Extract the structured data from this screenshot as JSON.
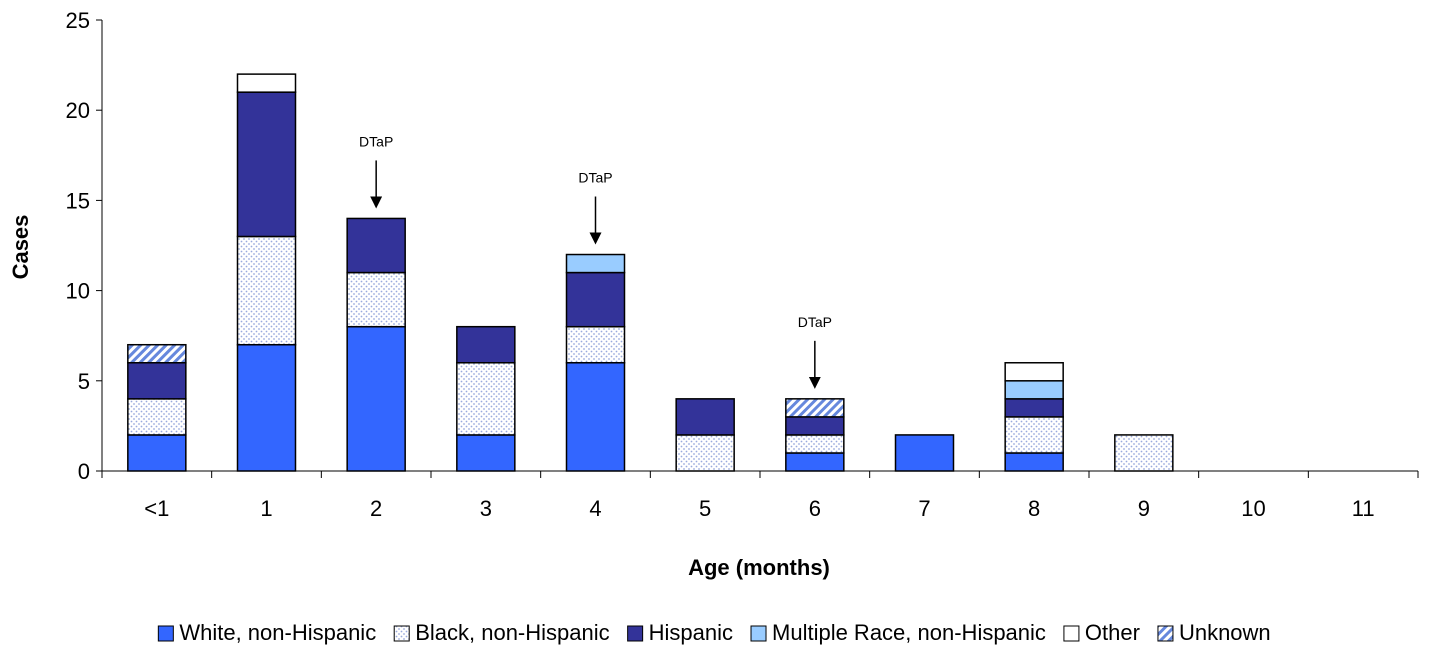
{
  "chart_data": {
    "type": "bar",
    "stacked": true,
    "categories": [
      "<1",
      "1",
      "2",
      "3",
      "4",
      "5",
      "6",
      "7",
      "8",
      "9",
      "10",
      "11"
    ],
    "series": [
      {
        "name": "White, non-Hispanic",
        "values": [
          2,
          7,
          8,
          2,
          6,
          0,
          1,
          2,
          1,
          0,
          0,
          0
        ],
        "color": "#3366ff",
        "pattern": "solid"
      },
      {
        "name": "Black, non-Hispanic",
        "values": [
          2,
          6,
          3,
          4,
          2,
          2,
          1,
          0,
          2,
          2,
          0,
          0
        ],
        "color": "#99aadd",
        "pattern": "dots"
      },
      {
        "name": "Hispanic",
        "values": [
          2,
          8,
          3,
          2,
          3,
          2,
          1,
          0,
          1,
          0,
          0,
          0
        ],
        "color": "#333399",
        "pattern": "solid"
      },
      {
        "name": "Multiple Race, non-Hispanic",
        "values": [
          0,
          0,
          0,
          0,
          1,
          0,
          0,
          0,
          1,
          0,
          0,
          0
        ],
        "color": "#99ccff",
        "pattern": "solid"
      },
      {
        "name": "Other",
        "values": [
          0,
          1,
          0,
          0,
          0,
          0,
          0,
          0,
          1,
          0,
          0,
          0
        ],
        "color": "#ffffff",
        "pattern": "solid"
      },
      {
        "name": "Unknown",
        "values": [
          1,
          0,
          0,
          0,
          0,
          0,
          1,
          0,
          0,
          0,
          0,
          0
        ],
        "color": "#6688dd",
        "pattern": "hatch"
      }
    ],
    "xlabel": "Age (months)",
    "ylabel": "Cases",
    "ylim": [
      0,
      25
    ],
    "yticks": [
      0,
      5,
      10,
      15,
      20,
      25
    ],
    "grid": false,
    "legend_position": "bottom",
    "annotations": [
      {
        "text": "DTaP",
        "category": "2"
      },
      {
        "text": "DTaP",
        "category": "4"
      },
      {
        "text": "DTaP",
        "category": "6"
      }
    ]
  }
}
